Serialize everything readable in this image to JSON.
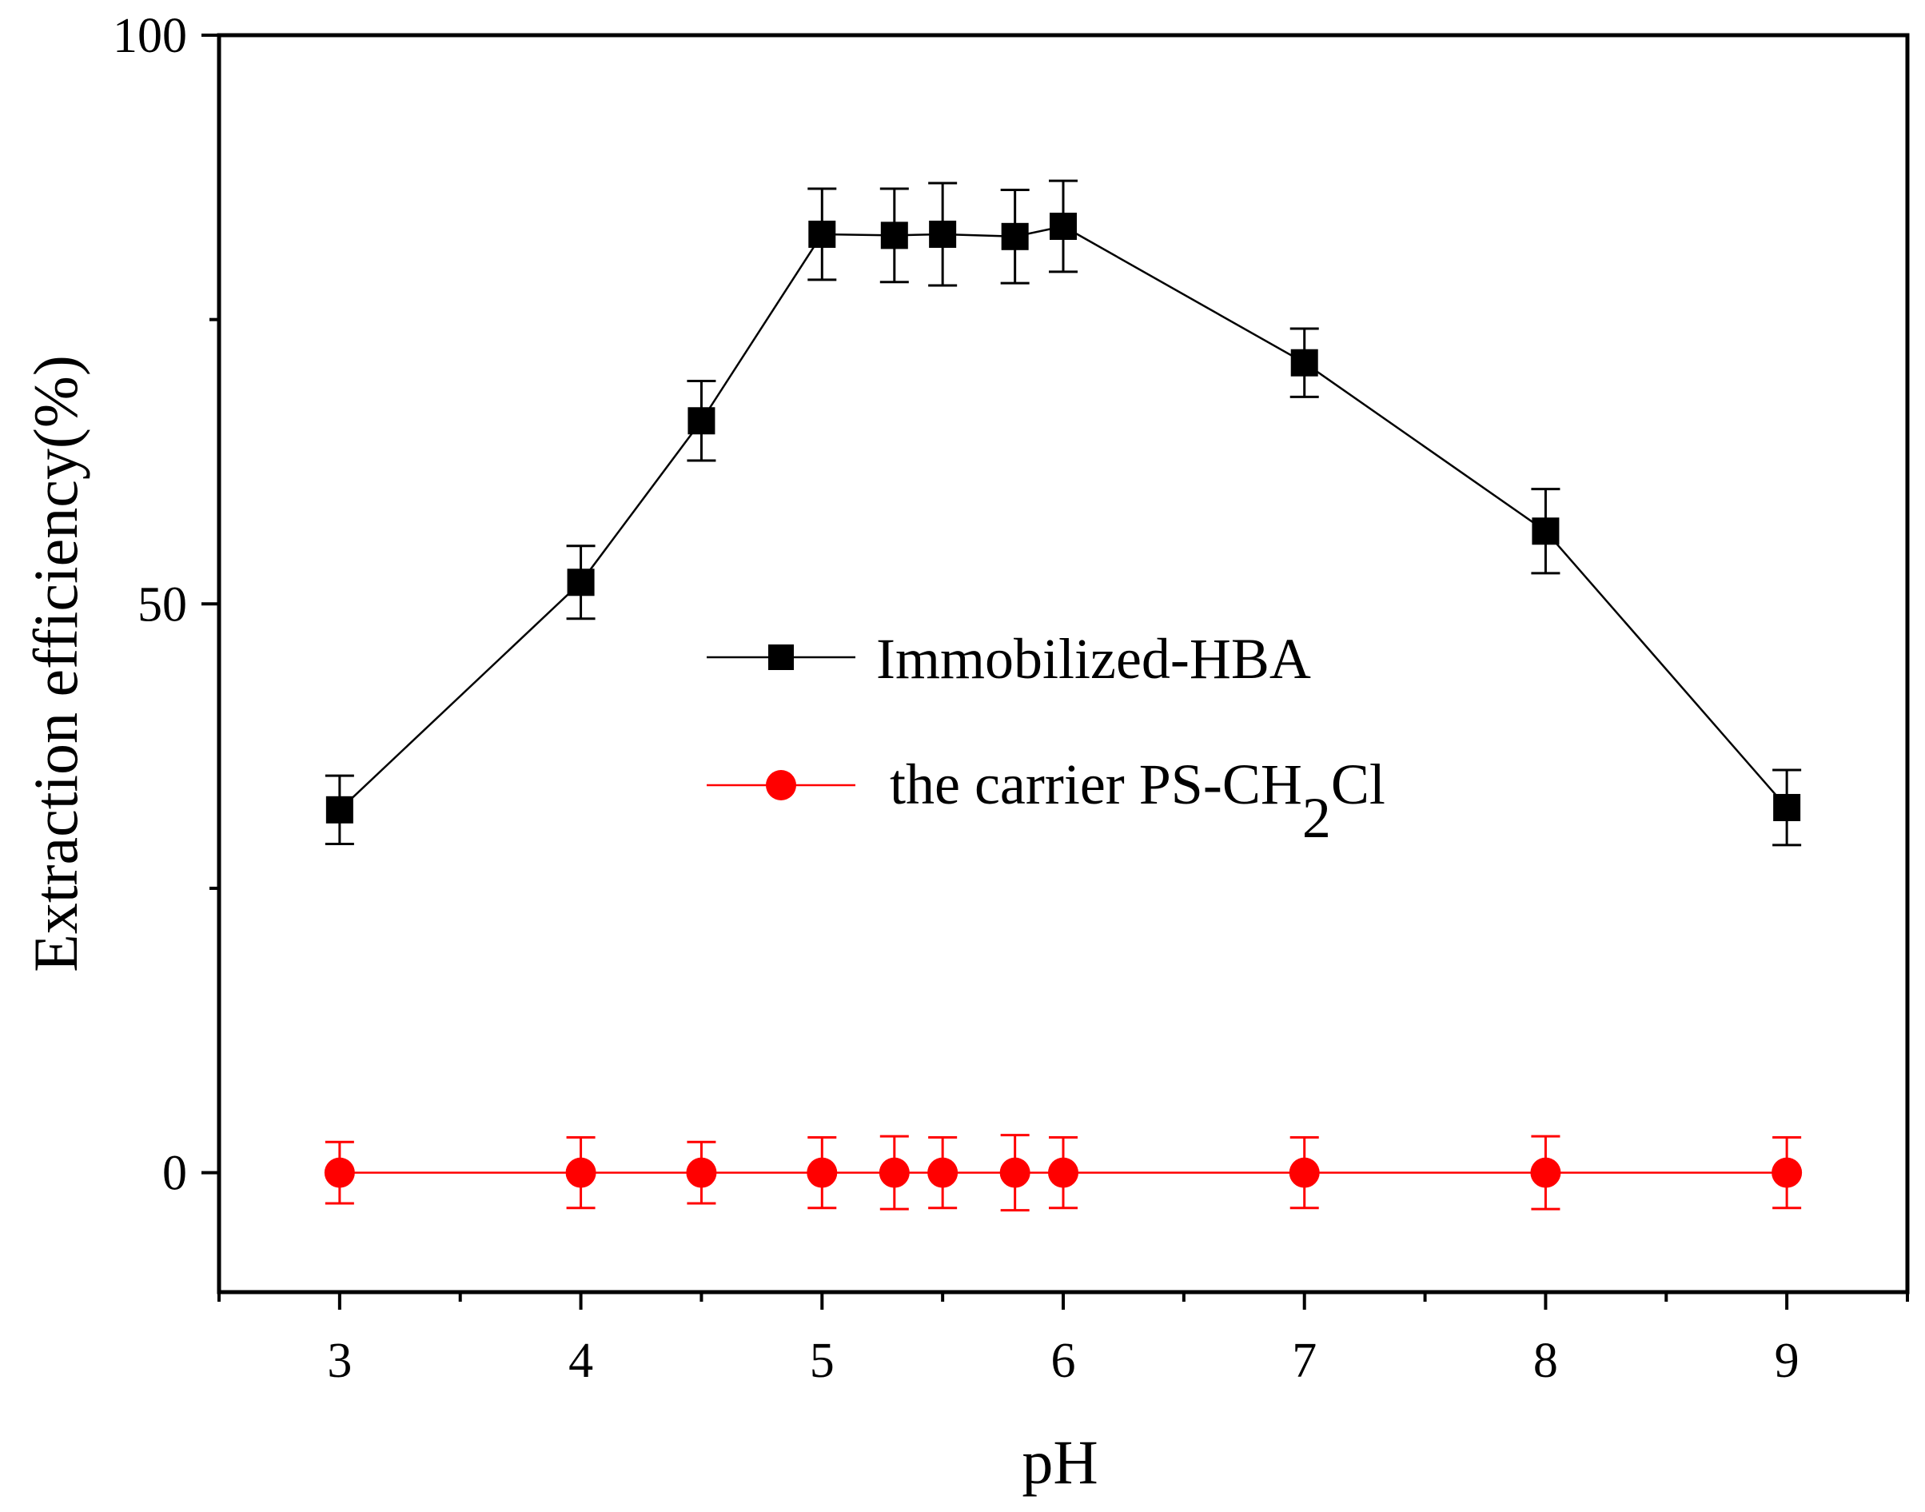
{
  "chart_data": {
    "type": "line",
    "title": "",
    "xlabel": "pH",
    "ylabel": "Extraction efficiency(%)",
    "xlim": [
      2.5,
      9.5
    ],
    "ylim": [
      -10.5,
      100
    ],
    "xticks": [
      3,
      4,
      5,
      6,
      7,
      8,
      9
    ],
    "xtick_labels": [
      "3",
      "4",
      "5",
      "6",
      "7",
      "8",
      "9"
    ],
    "yticks": [
      0,
      50,
      100
    ],
    "ytick_labels": [
      "0",
      "50",
      "100"
    ],
    "grid": false,
    "legend_position": "center",
    "series": [
      {
        "name": "Immobilized-HBA",
        "color": "#000000",
        "marker": "square",
        "x": [
          3,
          4,
          4.5,
          5,
          5.3,
          5.5,
          5.8,
          6,
          7,
          8,
          9
        ],
        "y": [
          31.9,
          51.9,
          66.1,
          82.5,
          82.4,
          82.5,
          82.3,
          83.2,
          71.2,
          56.4,
          32.1
        ],
        "error": [
          3.0,
          3.2,
          3.5,
          4.0,
          4.1,
          4.5,
          4.1,
          4.0,
          3.0,
          3.7,
          3.3
        ]
      },
      {
        "name": "the carrier PS-CH2Cl",
        "name_parts": [
          "the carrier PS-CH",
          "2",
          "Cl"
        ],
        "color": "#ff0000",
        "marker": "circle",
        "x": [
          3,
          4,
          4.5,
          5,
          5.3,
          5.5,
          5.8,
          6,
          7,
          8,
          9
        ],
        "y": [
          0,
          0,
          0,
          0,
          0,
          0,
          0,
          0,
          0,
          0,
          0
        ],
        "error": [
          2.7,
          3.1,
          2.7,
          3.1,
          3.2,
          3.1,
          3.3,
          3.1,
          3.1,
          3.2,
          3.1
        ]
      }
    ]
  }
}
